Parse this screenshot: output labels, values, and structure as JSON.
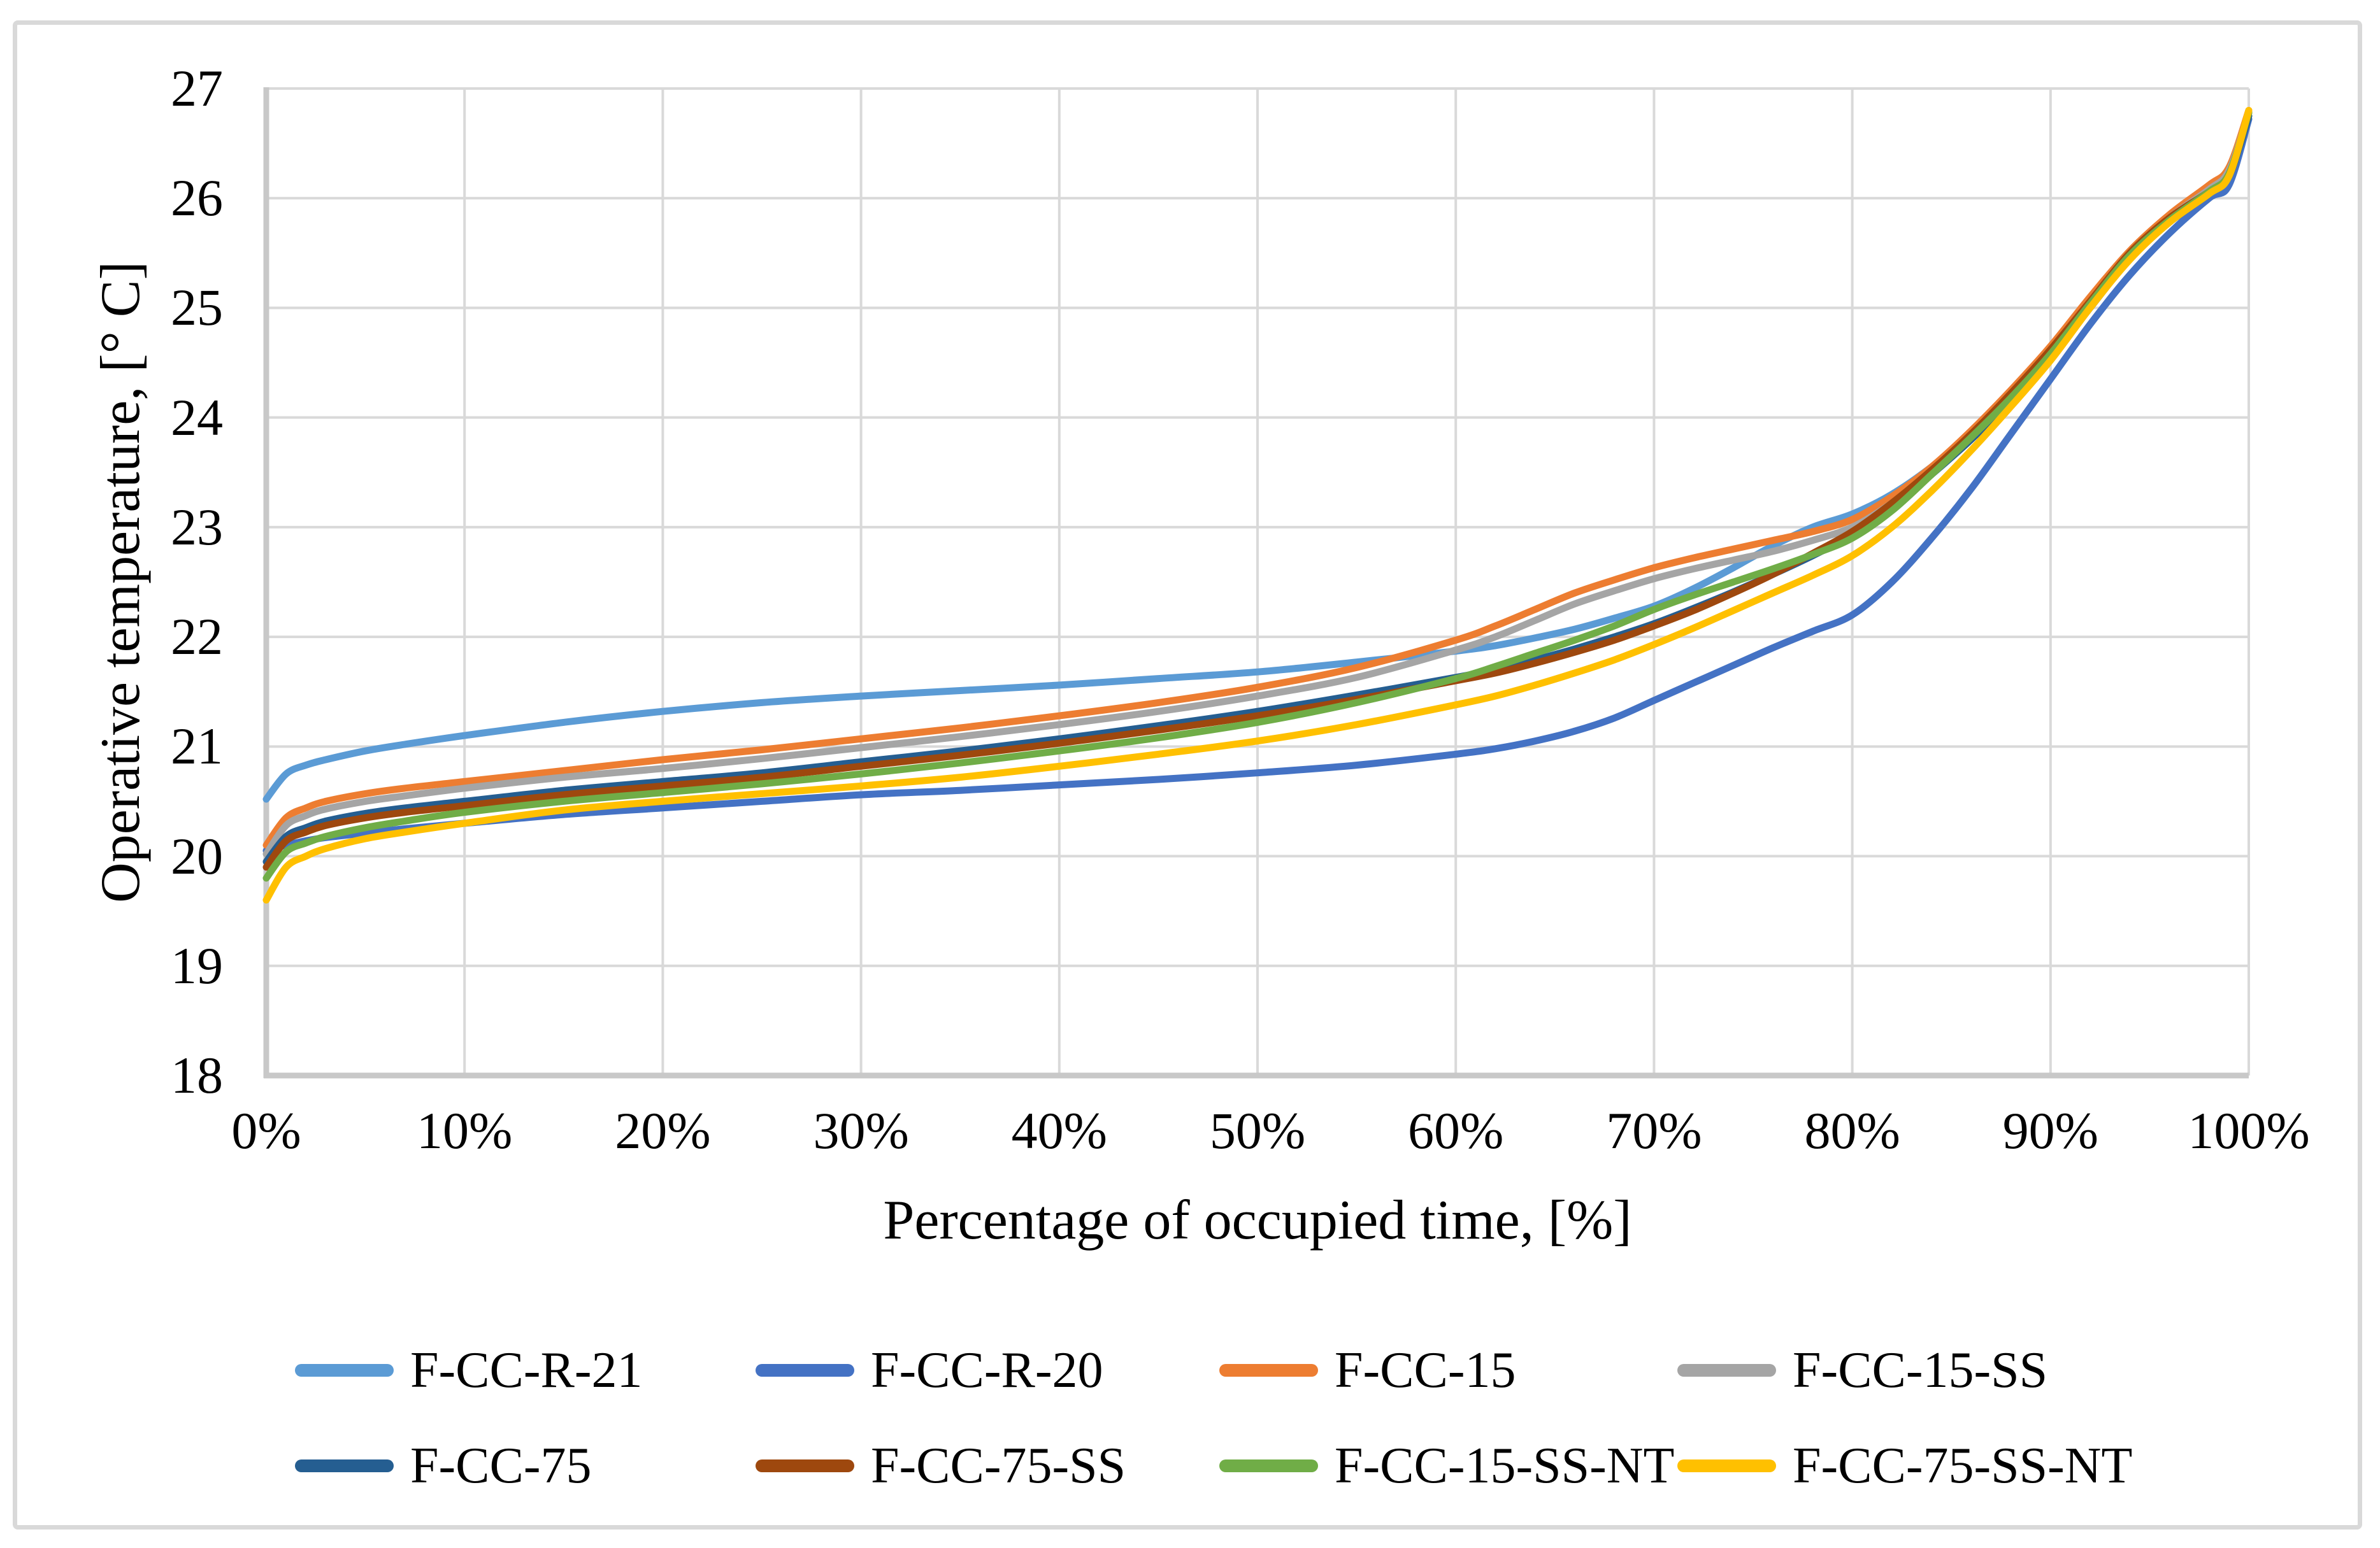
{
  "figure": {
    "kind": "excel-style line chart figure",
    "background": "#FFFFFF",
    "border_color": "#D9D9D9"
  },
  "chart_data": {
    "type": "line",
    "title": "",
    "xlabel": "Percentage of occupied time, [%]",
    "ylabel": "Operative temperature, [° C]",
    "xlim_percent": [
      0,
      100
    ],
    "ylim": [
      18,
      27
    ],
    "grid": true,
    "grid_color": "#D9D9D9",
    "axis_line_color": "#C8C8C8",
    "text_color": "#000000",
    "legend_position": "bottom",
    "x_ticks": [
      {
        "value": 0,
        "label": "0%"
      },
      {
        "value": 10,
        "label": "10%"
      },
      {
        "value": 20,
        "label": "20%"
      },
      {
        "value": 30,
        "label": "30%"
      },
      {
        "value": 40,
        "label": "40%"
      },
      {
        "value": 50,
        "label": "50%"
      },
      {
        "value": 60,
        "label": "60%"
      },
      {
        "value": 70,
        "label": "70%"
      },
      {
        "value": 80,
        "label": "80%"
      },
      {
        "value": 90,
        "label": "90%"
      },
      {
        "value": 100,
        "label": "100%"
      }
    ],
    "y_ticks": [
      {
        "value": 18,
        "label": "18"
      },
      {
        "value": 19,
        "label": "19"
      },
      {
        "value": 20,
        "label": "20"
      },
      {
        "value": 21,
        "label": "21"
      },
      {
        "value": 22,
        "label": "22"
      },
      {
        "value": 23,
        "label": "23"
      },
      {
        "value": 24,
        "label": "24"
      },
      {
        "value": 25,
        "label": "25"
      },
      {
        "value": 26,
        "label": "26"
      },
      {
        "value": 27,
        "label": "27"
      }
    ],
    "x_percent": [
      0,
      1,
      2,
      3,
      5,
      7,
      10,
      15,
      20,
      25,
      30,
      35,
      40,
      45,
      50,
      55,
      60,
      62,
      64,
      66,
      68,
      70,
      72,
      74,
      76,
      78,
      80,
      82,
      84,
      86,
      88,
      90,
      92,
      94,
      96,
      98,
      99,
      100
    ],
    "series": [
      {
        "name": "F-CC-R-21",
        "color": "#5B9BD5",
        "values": [
          20.52,
          20.75,
          20.83,
          20.88,
          20.96,
          21.02,
          21.1,
          21.22,
          21.32,
          21.4,
          21.46,
          21.51,
          21.56,
          21.62,
          21.68,
          21.77,
          21.87,
          21.92,
          21.99,
          22.07,
          22.17,
          22.28,
          22.44,
          22.63,
          22.83,
          23.0,
          23.12,
          23.3,
          23.55,
          23.85,
          24.2,
          24.6,
          25.05,
          25.5,
          25.82,
          26.08,
          26.22,
          26.78
        ]
      },
      {
        "name": "F-CC-R-20",
        "color": "#4472C4",
        "values": [
          20.05,
          20.1,
          20.14,
          20.17,
          20.21,
          20.25,
          20.3,
          20.38,
          20.44,
          20.5,
          20.56,
          20.6,
          20.65,
          20.7,
          20.76,
          20.83,
          20.93,
          20.98,
          21.05,
          21.14,
          21.26,
          21.42,
          21.58,
          21.74,
          21.9,
          22.05,
          22.2,
          22.5,
          22.9,
          23.35,
          23.85,
          24.35,
          24.85,
          25.3,
          25.68,
          26.0,
          26.12,
          26.72
        ]
      },
      {
        "name": "F-CC-15",
        "color": "#ED7D31",
        "values": [
          20.1,
          20.35,
          20.44,
          20.5,
          20.57,
          20.62,
          20.68,
          20.78,
          20.88,
          20.97,
          21.07,
          21.17,
          21.28,
          21.4,
          21.54,
          21.72,
          21.97,
          22.1,
          22.25,
          22.4,
          22.52,
          22.63,
          22.72,
          22.8,
          22.88,
          22.96,
          23.07,
          23.28,
          23.55,
          23.88,
          24.25,
          24.65,
          25.1,
          25.52,
          25.85,
          26.12,
          26.28,
          26.8
        ]
      },
      {
        "name": "F-CC-15-SS",
        "color": "#A5A5A5",
        "values": [
          20.02,
          20.28,
          20.37,
          20.43,
          20.5,
          20.55,
          20.62,
          20.72,
          20.8,
          20.89,
          20.99,
          21.09,
          21.2,
          21.32,
          21.46,
          21.63,
          21.88,
          22.0,
          22.15,
          22.3,
          22.42,
          22.53,
          22.62,
          22.7,
          22.78,
          22.88,
          23.0,
          23.22,
          23.5,
          23.84,
          24.2,
          24.6,
          25.05,
          25.48,
          25.82,
          26.08,
          26.25,
          26.78
        ]
      },
      {
        "name": "F-CC-75",
        "color": "#255E91",
        "values": [
          19.95,
          20.18,
          20.26,
          20.32,
          20.39,
          20.44,
          20.5,
          20.6,
          20.68,
          20.76,
          20.86,
          20.96,
          21.07,
          21.19,
          21.32,
          21.47,
          21.63,
          21.7,
          21.79,
          21.89,
          22.0,
          22.12,
          22.26,
          22.41,
          22.57,
          22.74,
          22.93,
          23.18,
          23.48,
          23.8,
          24.16,
          24.55,
          25.0,
          25.45,
          25.78,
          26.04,
          26.2,
          26.75
        ]
      },
      {
        "name": "F-CC-75-SS",
        "color": "#9E480E",
        "values": [
          19.9,
          20.14,
          20.22,
          20.28,
          20.35,
          20.4,
          20.46,
          20.56,
          20.64,
          20.72,
          20.82,
          20.92,
          21.03,
          21.15,
          21.28,
          21.43,
          21.6,
          21.67,
          21.76,
          21.86,
          21.97,
          22.1,
          22.24,
          22.4,
          22.57,
          22.76,
          22.96,
          23.22,
          23.52,
          23.85,
          24.22,
          24.62,
          25.06,
          25.5,
          25.82,
          26.06,
          26.22,
          26.78
        ]
      },
      {
        "name": "F-CC-15-SS-NT",
        "color": "#70AD47",
        "values": [
          19.8,
          20.04,
          20.12,
          20.18,
          20.26,
          20.32,
          20.4,
          20.5,
          20.58,
          20.66,
          20.75,
          20.85,
          20.96,
          21.08,
          21.22,
          21.4,
          21.62,
          21.73,
          21.85,
          21.97,
          22.1,
          22.25,
          22.38,
          22.5,
          22.62,
          22.75,
          22.9,
          23.15,
          23.48,
          23.82,
          24.18,
          24.58,
          25.04,
          25.48,
          25.8,
          26.06,
          26.22,
          26.78
        ]
      },
      {
        "name": "F-CC-75-SS-NT",
        "color": "#FFC000",
        "values": [
          19.6,
          19.9,
          20.0,
          20.07,
          20.16,
          20.22,
          20.3,
          20.42,
          20.5,
          20.57,
          20.64,
          20.72,
          20.82,
          20.93,
          21.05,
          21.2,
          21.38,
          21.46,
          21.56,
          21.67,
          21.79,
          21.93,
          22.08,
          22.24,
          22.4,
          22.56,
          22.74,
          23.0,
          23.33,
          23.7,
          24.1,
          24.52,
          25.0,
          25.44,
          25.78,
          26.04,
          26.2,
          26.8
        ]
      }
    ]
  }
}
